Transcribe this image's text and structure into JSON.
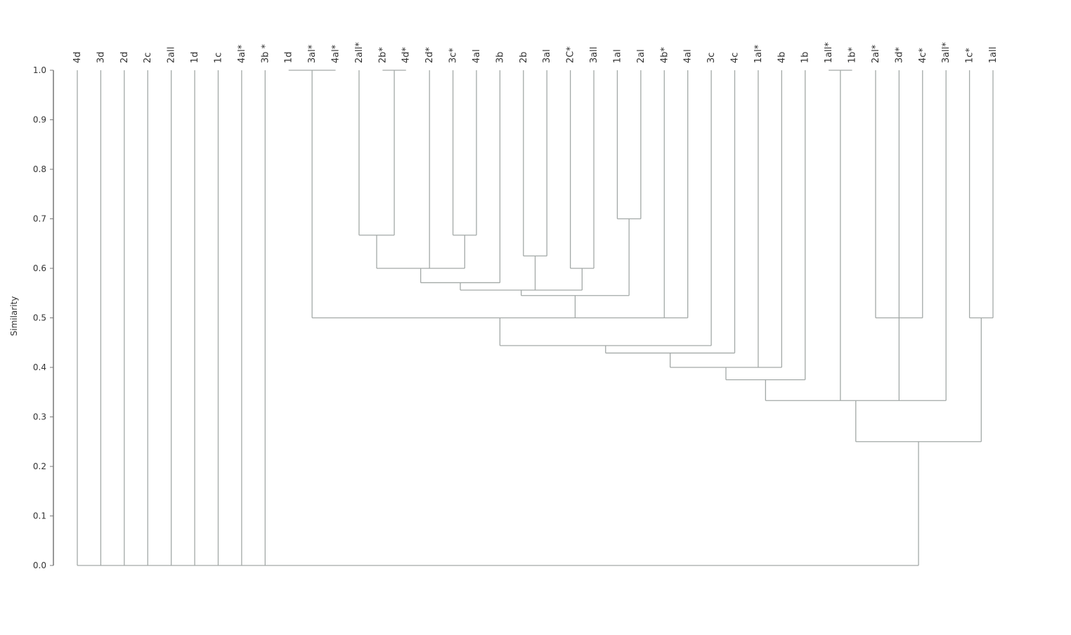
{
  "chart_data": {
    "type": "dendrogram",
    "y_label": "Similarity",
    "color": "#a3a9a7",
    "ylim": [
      0,
      1
    ],
    "yticks": [
      {
        "value": 0,
        "label": "0.0"
      },
      {
        "value": 0.1,
        "label": "0.1"
      },
      {
        "value": 0.2,
        "label": "0.2"
      },
      {
        "value": 0.3,
        "label": "0.3"
      },
      {
        "value": 0.4,
        "label": "0.4"
      },
      {
        "value": 0.5,
        "label": "0.5"
      },
      {
        "value": 0.6,
        "label": "0.6"
      },
      {
        "value": 0.7,
        "label": "0.7"
      },
      {
        "value": 0.8,
        "label": "0.8"
      },
      {
        "value": 0.9,
        "label": "0.9"
      },
      {
        "value": 1,
        "label": "1.0"
      }
    ],
    "leaves": [
      "4d",
      "3d",
      "2d",
      "2c",
      "2all",
      "1d",
      "1c",
      "4al*",
      "3b *",
      "1d",
      "3al*",
      "4al*",
      "2all*",
      "2b*",
      "4d*",
      "2d*",
      "3c*",
      "4al",
      "3b",
      "2b",
      "3al",
      "2C*",
      "3all",
      "1al",
      "2al",
      "4b*",
      "4al",
      "3c",
      "4c",
      "1al*",
      "4b",
      "1b",
      "1all*",
      "1b*",
      "2al*",
      "3d*",
      "4c*",
      "3all*",
      "1c*",
      "1all"
    ],
    "merges": [
      {
        "members": [
          9,
          10,
          11
        ],
        "height": 1
      },
      {
        "members": [
          13,
          14
        ],
        "height": 1
      },
      {
        "members": [
          12,
          41
        ],
        "height": 0.667
      },
      {
        "members": [
          16,
          17
        ],
        "height": 0.667
      },
      {
        "members": [
          42,
          15,
          43
        ],
        "height": 0.6
      },
      {
        "members": [
          44,
          18
        ],
        "height": 0.571
      },
      {
        "members": [
          19,
          20
        ],
        "height": 0.625
      },
      {
        "members": [
          21,
          22
        ],
        "height": 0.6
      },
      {
        "members": [
          45,
          46,
          47
        ],
        "height": 0.556
      },
      {
        "members": [
          23,
          24
        ],
        "height": 0.7
      },
      {
        "members": [
          48,
          49
        ],
        "height": 0.545
      },
      {
        "members": [
          40,
          50,
          25,
          26
        ],
        "height": 0.5
      },
      {
        "members": [
          51,
          27
        ],
        "height": 0.444
      },
      {
        "members": [
          52,
          28
        ],
        "height": 0.429
      },
      {
        "members": [
          53,
          29,
          30
        ],
        "height": 0.4
      },
      {
        "members": [
          54,
          31
        ],
        "height": 0.375
      },
      {
        "members": [
          32,
          33
        ],
        "height": 1
      },
      {
        "members": [
          34,
          35,
          36
        ],
        "height": 0.5
      },
      {
        "members": [
          55,
          56,
          57,
          37
        ],
        "height": 0.333
      },
      {
        "members": [
          38,
          39
        ],
        "height": 0.5
      },
      {
        "members": [
          58,
          59
        ],
        "height": 0.25
      },
      {
        "members": [
          0,
          1,
          2,
          3,
          4,
          5,
          6,
          7,
          8,
          60
        ],
        "height": 0
      }
    ]
  }
}
